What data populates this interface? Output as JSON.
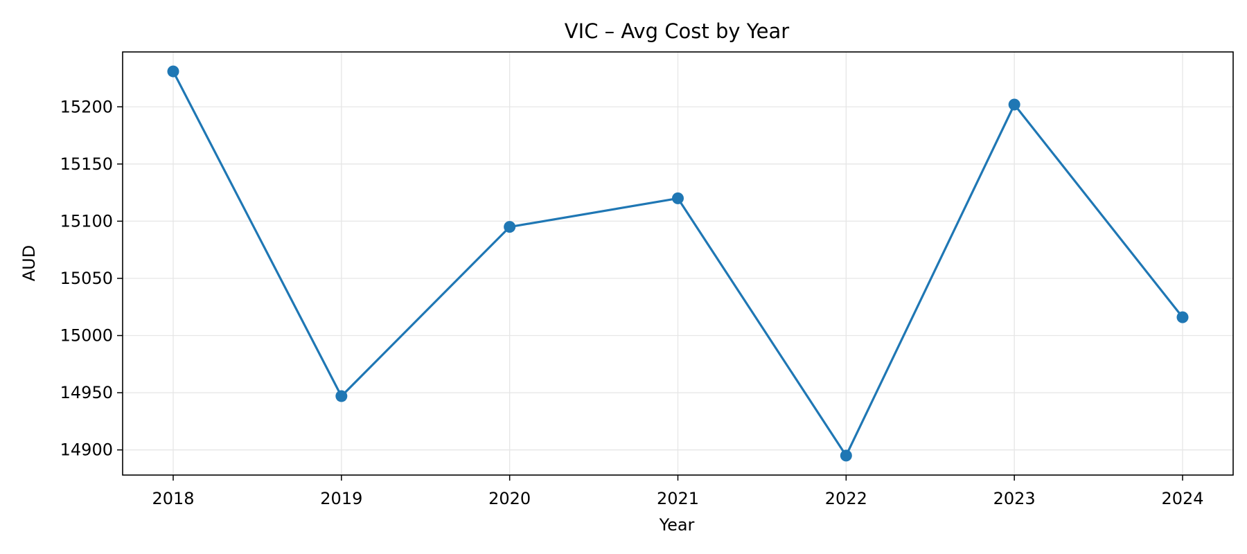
{
  "chart_data": {
    "type": "line",
    "title": "VIC – Avg Cost by Year",
    "xlabel": "Year",
    "ylabel": "AUD",
    "x": [
      "2018",
      "2019",
      "2020",
      "2021",
      "2022",
      "2023",
      "2024"
    ],
    "series": [
      {
        "values": [
          15231,
          14947,
          15095,
          15120,
          14895,
          15202,
          15016
        ]
      }
    ],
    "yticks": [
      14900,
      14950,
      15000,
      15050,
      15100,
      15150,
      15200
    ],
    "ylim": [
      14878,
      15248
    ],
    "grid": true,
    "line_color": "#1f77b4",
    "markers": true
  }
}
